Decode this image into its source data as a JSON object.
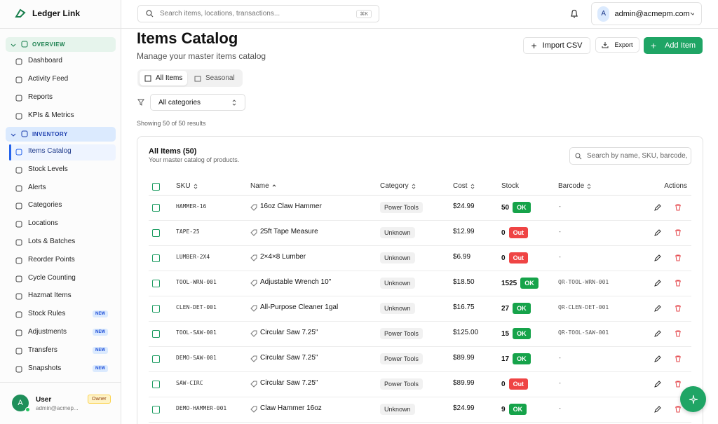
{
  "brand": "Ledger Link",
  "topbar": {
    "search_placeholder": "Search items, locations, transactions...",
    "shortcut": "⌘K",
    "avatar": "A",
    "email": "admin@acmepm.com"
  },
  "sidebar": {
    "sections": [
      {
        "label": "OVERVIEW",
        "items": [
          {
            "label": "Dashboard"
          },
          {
            "label": "Activity Feed"
          },
          {
            "label": "Reports"
          },
          {
            "label": "KPIs & Metrics"
          }
        ]
      },
      {
        "label": "INVENTORY",
        "items": [
          {
            "label": "Items Catalog"
          },
          {
            "label": "Stock Levels"
          },
          {
            "label": "Alerts"
          },
          {
            "label": "Categories"
          },
          {
            "label": "Locations"
          },
          {
            "label": "Lots & Batches"
          },
          {
            "label": "Reorder Points"
          },
          {
            "label": "Cycle Counting"
          },
          {
            "label": "Hazmat Items"
          },
          {
            "label": "Stock Rules",
            "badge": "NEW"
          },
          {
            "label": "Adjustments",
            "badge": "NEW"
          },
          {
            "label": "Transfers",
            "badge": "NEW"
          },
          {
            "label": "Snapshots",
            "badge": "NEW"
          }
        ]
      }
    ],
    "user": {
      "avatar": "A",
      "name": "User",
      "email": "admin@acmep...",
      "role": "Owner"
    }
  },
  "page": {
    "title": "Items Catalog",
    "subtitle": "Manage your master items catalog",
    "buttons": [
      "Import CSV",
      "Export",
      "Add Item"
    ],
    "tabs": [
      "All Items",
      "Seasonal"
    ],
    "filter": "All categories",
    "results": "Showing 50 of 50 results"
  },
  "card": {
    "title": "All Items (50)",
    "description": "Your master catalog of products.",
    "search_placeholder": "Search by name, SKU, barcode,"
  },
  "table": {
    "columns": [
      "SKU",
      "Name",
      "Category",
      "Cost",
      "Stock",
      "Barcode",
      "Actions"
    ],
    "rows": [
      {
        "sku": "HAMMER-16",
        "name": "16oz Claw Hammer",
        "category": "Power Tools",
        "cost": "$24.99",
        "stock": 50,
        "status": "OK",
        "barcode": "-"
      },
      {
        "sku": "TAPE-25",
        "name": "25ft Tape Measure",
        "category": "Unknown",
        "cost": "$12.99",
        "stock": 0,
        "status": "Out",
        "barcode": "-"
      },
      {
        "sku": "LUMBER-2X4",
        "name": "2×4×8 Lumber",
        "category": "Unknown",
        "cost": "$6.99",
        "stock": 0,
        "status": "Out",
        "barcode": "-"
      },
      {
        "sku": "TOOL-WRN-001",
        "name": "Adjustable Wrench 10\"",
        "category": "Unknown",
        "cost": "$18.50",
        "stock": 1525,
        "status": "OK",
        "barcode": "QR-TOOL-WRN-001"
      },
      {
        "sku": "CLEN-DET-001",
        "name": "All-Purpose Cleaner 1gal",
        "category": "Unknown",
        "cost": "$16.75",
        "stock": 27,
        "status": "OK",
        "barcode": "QR-CLEN-DET-001"
      },
      {
        "sku": "TOOL-SAW-001",
        "name": "Circular Saw 7.25\"",
        "category": "Power Tools",
        "cost": "$125.00",
        "stock": 15,
        "status": "OK",
        "barcode": "QR-TOOL-SAW-001"
      },
      {
        "sku": "DEMO-SAW-001",
        "name": "Circular Saw 7.25\"",
        "category": "Power Tools",
        "cost": "$89.99",
        "stock": 17,
        "status": "OK",
        "barcode": "-"
      },
      {
        "sku": "SAW-CIRC",
        "name": "Circular Saw 7.25\"",
        "category": "Power Tools",
        "cost": "$89.99",
        "stock": 0,
        "status": "Out",
        "barcode": "-"
      },
      {
        "sku": "DEMO-HAMMER-001",
        "name": "Claw Hammer 16oz",
        "category": "Unknown",
        "cost": "$24.99",
        "stock": 9,
        "status": "OK",
        "barcode": "-"
      }
    ]
  }
}
